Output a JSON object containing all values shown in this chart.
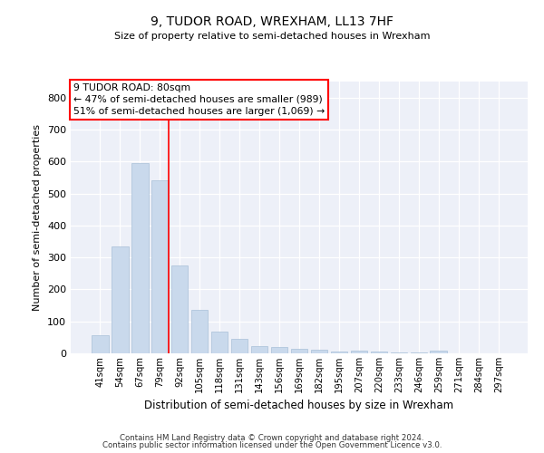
{
  "title": "9, TUDOR ROAD, WREXHAM, LL13 7HF",
  "subtitle": "Size of property relative to semi-detached houses in Wrexham",
  "xlabel": "Distribution of semi-detached houses by size in Wrexham",
  "ylabel": "Number of semi-detached properties",
  "bar_color": "#c9d9ec",
  "bar_edge_color": "#a8c0d8",
  "annotation_title": "9 TUDOR ROAD: 80sqm",
  "annotation_line1": "← 47% of semi-detached houses are smaller (989)",
  "annotation_line2": "51% of semi-detached houses are larger (1,069) →",
  "footer1": "Contains HM Land Registry data © Crown copyright and database right 2024.",
  "footer2": "Contains public sector information licensed under the Open Government Licence v3.0.",
  "categories": [
    "41sqm",
    "54sqm",
    "67sqm",
    "79sqm",
    "92sqm",
    "105sqm",
    "118sqm",
    "131sqm",
    "143sqm",
    "156sqm",
    "169sqm",
    "182sqm",
    "195sqm",
    "207sqm",
    "220sqm",
    "233sqm",
    "246sqm",
    "259sqm",
    "271sqm",
    "284sqm",
    "297sqm"
  ],
  "values": [
    57,
    335,
    595,
    540,
    275,
    135,
    68,
    45,
    22,
    20,
    15,
    10,
    6,
    8,
    6,
    4,
    2,
    8,
    1,
    1,
    1
  ],
  "ylim": [
    0,
    850
  ],
  "yticks": [
    0,
    100,
    200,
    300,
    400,
    500,
    600,
    700,
    800
  ],
  "background_color": "#edf0f8"
}
